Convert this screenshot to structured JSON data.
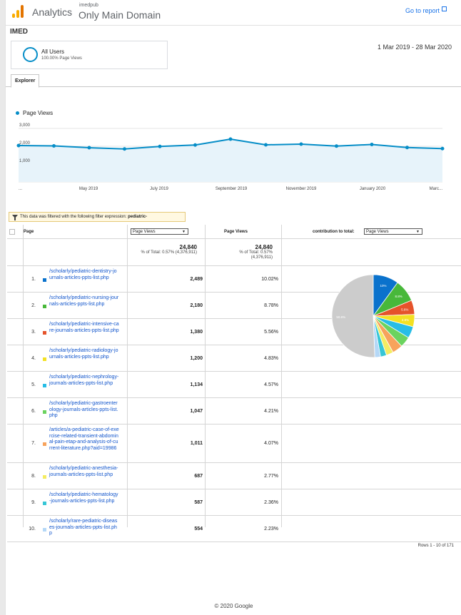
{
  "header": {
    "app_name": "Analytics",
    "account": "imedpub",
    "view": "Only Main Domain",
    "goto_report": "Go to report"
  },
  "property": "IMED",
  "segment": {
    "name": "All Users",
    "sub": "100.00% Page Views"
  },
  "date_range": "1 Mar 2019 - 28 Mar 2020",
  "tabs": [
    "Explorer"
  ],
  "chart_legend": "Page Views",
  "chart_data": {
    "type": "line",
    "series": [
      {
        "name": "Page Views",
        "values": [
          2040,
          2020,
          1920,
          1850,
          1990,
          2070,
          2400,
          2080,
          2120,
          2010,
          2100,
          1930,
          1870
        ]
      }
    ],
    "x_tick_labels": [
      "...",
      "May 2019",
      "July 2019",
      "September 2019",
      "November 2019",
      "January 2020",
      "Marc..."
    ],
    "y_tick_labels": [
      "3,000",
      "2,000",
      "1,000"
    ],
    "ylim": [
      0,
      3600
    ],
    "color": "#058dc7"
  },
  "filter_note": {
    "prefix": "This data was filtered with the following filter expression:",
    "expression": "pediatric-"
  },
  "table": {
    "col_page": "Page",
    "col_metric_select": "Page Views",
    "col_pageviews": "Page Views",
    "col_contribution": "contribution to total:",
    "contribution_select": "Page Views",
    "totals": [
      {
        "big": "24,840",
        "small": "% of Total: 0.57% (4,376,911)"
      },
      {
        "big": "24,840",
        "small": "% of Total: 0.57%",
        "small2": "(4,376,911)"
      }
    ],
    "rows": [
      {
        "n": "1.",
        "page": "/scholarly/pediatric-dentistry-journals-articles-ppts-list.php",
        "views": "2,489",
        "pct": "10.02%",
        "color": "#0a72cc"
      },
      {
        "n": "2.",
        "page": "/scholarly/pediatric-nursing-journals-articles-ppts-list.php",
        "views": "2,180",
        "pct": "8.78%",
        "color": "#48b83a"
      },
      {
        "n": "3.",
        "page": "/scholarly/pediatric-intensive-care-journals-articles-ppts-list.php",
        "views": "1,380",
        "pct": "5.56%",
        "color": "#e5532b"
      },
      {
        "n": "4.",
        "page": "/scholarly/pediatric-radiology-journals-articles-ppts-list.php",
        "views": "1,200",
        "pct": "4.83%",
        "color": "#f3e123"
      },
      {
        "n": "5.",
        "page": "/scholarly/pediatric-nephrology-journals-articles-ppts-list.php",
        "views": "1,134",
        "pct": "4.57%",
        "color": "#27bde6"
      },
      {
        "n": "6.",
        "page": "/scholarly/pediatric-gastroenterology-journals-articles-ppts-list.php",
        "views": "1,047",
        "pct": "4.21%",
        "color": "#6bd35f"
      },
      {
        "n": "7.",
        "page": "/articles/a-pediatric-case-of-exercise-related-transient-abdominal-pain-etap-and-analysis-of-current-literature.php?aid=19986",
        "views": "1,011",
        "pct": "4.07%",
        "color": "#f7a35c"
      },
      {
        "n": "8.",
        "page": "/scholarly/pediatric-anesthesia-journals-articles-ppts-list.php",
        "views": "687",
        "pct": "2.77%",
        "color": "#f4ec62"
      },
      {
        "n": "9.",
        "page": "/scholarly/pediatric-hematology-journals-articles-ppts-list.php",
        "views": "587",
        "pct": "2.36%",
        "color": "#36c6d6"
      },
      {
        "n": "10.",
        "page": "/scholarly/rare-pediatric-diseases-journals-articles-ppts-list.php",
        "views": "554",
        "pct": "2.23%",
        "color": "#b5d8f7"
      }
    ]
  },
  "pie": {
    "slices": [
      {
        "value": 10.02,
        "color": "#0a72cc",
        "label": "10%"
      },
      {
        "value": 8.78,
        "color": "#48b83a",
        "label": "8.8%"
      },
      {
        "value": 5.56,
        "color": "#e5532b",
        "label": "5.6%"
      },
      {
        "value": 4.83,
        "color": "#f3e123",
        "label": "4.8%"
      },
      {
        "value": 4.57,
        "color": "#27bde6",
        "label": ""
      },
      {
        "value": 4.21,
        "color": "#6bd35f",
        "label": ""
      },
      {
        "value": 4.07,
        "color": "#f7a35c",
        "label": ""
      },
      {
        "value": 2.77,
        "color": "#f4ec62",
        "label": ""
      },
      {
        "value": 2.36,
        "color": "#36c6d6",
        "label": ""
      },
      {
        "value": 2.23,
        "color": "#b5d8f7",
        "label": ""
      },
      {
        "value": 50.6,
        "color": "#cccccc",
        "label": "50.6%"
      }
    ]
  },
  "rows_info": "Rows 1 - 10 of 171",
  "footer": "© 2020 Google"
}
